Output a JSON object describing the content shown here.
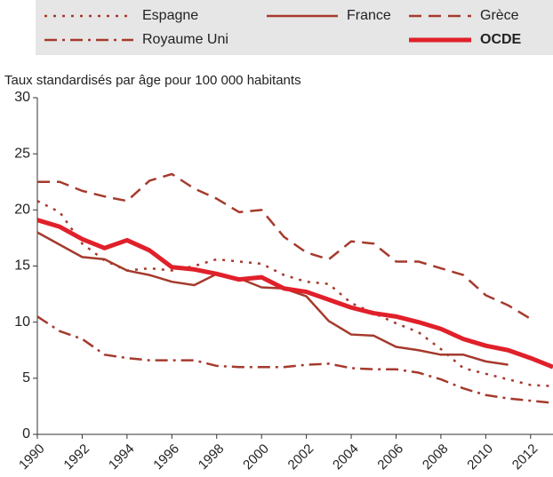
{
  "chart_data": {
    "type": "line",
    "y_axis_label": "Taux standardisés par âge pour 100 000 habitants",
    "x": [
      1990,
      1991,
      1992,
      1993,
      1994,
      1995,
      1996,
      1997,
      1998,
      1999,
      2000,
      2001,
      2002,
      2003,
      2004,
      2005,
      2006,
      2007,
      2008,
      2009,
      2010,
      2011,
      2012,
      2013
    ],
    "series": [
      {
        "name": "Espagne",
        "color": "#a53a2d",
        "dash": "dot",
        "width": 2.5,
        "values": [
          20.8,
          19.8,
          17.0,
          15.5,
          14.6,
          14.8,
          14.6,
          15.0,
          15.6,
          15.4,
          15.2,
          14.2,
          13.6,
          13.4,
          11.7,
          10.8,
          9.9,
          9.1,
          7.6,
          5.9,
          5.4,
          4.9,
          4.4,
          4.3
        ]
      },
      {
        "name": "France",
        "color": "#a53a2d",
        "dash": "solid",
        "width": 2.5,
        "values": [
          18.0,
          16.9,
          15.8,
          15.6,
          14.6,
          14.2,
          13.6,
          13.3,
          14.3,
          13.9,
          13.1,
          13.0,
          12.3,
          10.1,
          8.9,
          8.8,
          7.8,
          7.5,
          7.1,
          7.1,
          6.5,
          6.2,
          null,
          null
        ]
      },
      {
        "name": "Grèce",
        "color": "#a53a2d",
        "dash": "dash",
        "width": 2.5,
        "values": [
          22.5,
          22.5,
          21.7,
          21.2,
          20.8,
          22.6,
          23.2,
          21.9,
          21.0,
          19.8,
          20.0,
          17.6,
          16.2,
          15.6,
          17.2,
          17.0,
          15.4,
          15.4,
          14.8,
          14.2,
          12.4,
          11.5,
          10.3,
          null
        ]
      },
      {
        "name": "Royaume Uni",
        "color": "#a53a2d",
        "dash": "dashdot",
        "width": 2.5,
        "values": [
          10.5,
          9.2,
          8.5,
          7.1,
          6.8,
          6.6,
          6.6,
          6.6,
          6.1,
          6.0,
          6.0,
          6.0,
          6.2,
          6.3,
          5.9,
          5.8,
          5.8,
          5.5,
          4.9,
          4.1,
          3.5,
          3.2,
          3.0,
          2.8
        ]
      },
      {
        "name": "OCDE",
        "color": "#e0202a",
        "dash": "solid",
        "width": 5,
        "bold": true,
        "values": [
          19.1,
          18.5,
          17.4,
          16.6,
          17.3,
          16.4,
          14.9,
          14.7,
          14.3,
          13.8,
          14.0,
          13.0,
          12.7,
          12.0,
          11.3,
          10.8,
          10.5,
          10.0,
          9.4,
          8.5,
          7.9,
          7.5,
          6.8,
          6.0
        ]
      }
    ],
    "xlim": [
      1990,
      2013
    ],
    "xticks": [
      1990,
      1992,
      1994,
      1996,
      1998,
      2000,
      2002,
      2004,
      2006,
      2008,
      2010,
      2012
    ],
    "ylim": [
      0,
      30
    ],
    "yticks": [
      0,
      5,
      10,
      15,
      20,
      25,
      30
    ],
    "grid": false
  }
}
